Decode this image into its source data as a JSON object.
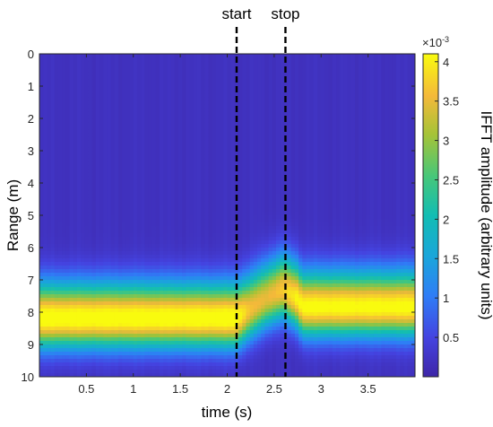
{
  "chart_data": {
    "type": "heatmap",
    "xlabel": "time (s)",
    "ylabel": "Range (m)",
    "xlim": [
      0,
      4
    ],
    "ylim": [
      0,
      10
    ],
    "y_direction": "top-to-bottom",
    "x_ticks": [
      "0.5",
      "1",
      "1.5",
      "2",
      "2.5",
      "3",
      "3.5"
    ],
    "y_ticks": [
      "0",
      "1",
      "2",
      "3",
      "4",
      "5",
      "6",
      "7",
      "8",
      "9",
      "10"
    ],
    "colorbar": {
      "label": "IFFT amplitude (arbitrary units)",
      "exponent_label": "×10",
      "exponent_power": "-3",
      "range": [
        0,
        4.1
      ],
      "ticks": [
        "0.5",
        "1",
        "1.5",
        "2",
        "2.5",
        "3",
        "3.5",
        "4"
      ],
      "colormap": "parula"
    },
    "band": {
      "description_of_data": "high-amplitude band vs time",
      "time": [
        0.0,
        2.1,
        2.25,
        2.4,
        2.6,
        2.75,
        2.8,
        3.0,
        3.5,
        4.0
      ],
      "center_range_m": [
        8.2,
        8.2,
        7.9,
        7.6,
        7.3,
        7.6,
        7.85,
        7.85,
        7.85,
        7.85
      ],
      "peak_amplitude": [
        4.05,
        4.05,
        3.4,
        3.3,
        3.5,
        3.9,
        3.95,
        3.95,
        3.95,
        3.95
      ]
    },
    "markers": [
      {
        "label": "start",
        "x": 2.1
      },
      {
        "label": "stop",
        "x": 2.62
      }
    ]
  }
}
